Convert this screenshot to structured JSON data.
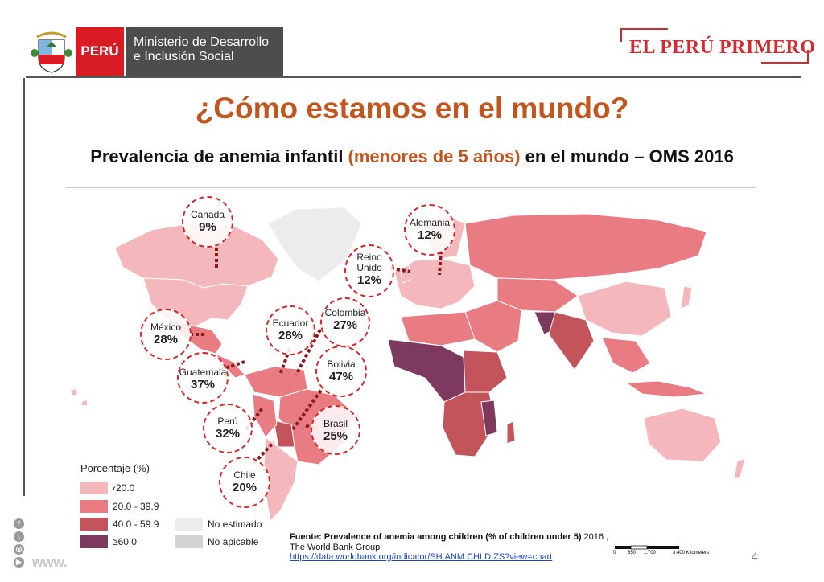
{
  "header": {
    "peru_label": "PERÚ",
    "ministry_line1": "Ministerio de Desarrollo",
    "ministry_line2": "e Inclusión Social",
    "slogan": "EL PERÚ PRIMERO"
  },
  "slide": {
    "title": "¿Cómo estamos en el mundo?",
    "subtitle_a": "Prevalencia de anemia infantil ",
    "subtitle_b": "(menores de 5 años)",
    "subtitle_c": " en el mundo – OMS 2016",
    "page_number": "4"
  },
  "callouts": [
    {
      "name": "Canada",
      "value": "9%"
    },
    {
      "name": "Alemania",
      "value": "12%"
    },
    {
      "name": "Reino Unido",
      "value": "12%"
    },
    {
      "name": "México",
      "value": "28%"
    },
    {
      "name": "Ecuador",
      "value": "28%"
    },
    {
      "name": "Colombia",
      "value": "27%"
    },
    {
      "name": "Guatemala",
      "value": "37%"
    },
    {
      "name": "Bolivia",
      "value": "47%"
    },
    {
      "name": "Perú",
      "value": "32%"
    },
    {
      "name": "Brasil",
      "value": "25%"
    },
    {
      "name": "Chile",
      "value": "20%"
    }
  ],
  "legend": {
    "title": "Porcentaje (%)",
    "items": [
      {
        "label": "‹20.0",
        "color": "#f4b8bc"
      },
      {
        "label": "20.0 - 39.9",
        "color": "#e97b82"
      },
      {
        "label": "40.0 - 59.9",
        "color": "#c3545c"
      },
      {
        "label": "≥60.0",
        "color": "#7d3a5e"
      },
      {
        "label": "No estimado",
        "color": "#ececec"
      },
      {
        "label": "No apicable",
        "color": "#d3d3d3"
      }
    ]
  },
  "source": {
    "label": "Fuente:",
    "text": "Prevalence of anemia among children (% of children under 5)",
    "year": " 2016 ,",
    "org": "The World Bank Group",
    "url": "https://data.worldbank.org/indicator/SH.ANM.CHLD.ZS?view=chart"
  },
  "scale": {
    "labels": [
      "0",
      "850",
      "1.700",
      "3.400 Kilometers"
    ]
  },
  "footer": {
    "www": "www."
  },
  "social_icons": [
    "facebook-icon",
    "twitter-icon",
    "instagram-icon",
    "youtube-icon"
  ],
  "colors": {
    "accent": "#c2561f",
    "peru_red": "#d91b23",
    "ministry_gray": "#4d4d4d",
    "callout_border": "#d62828"
  }
}
